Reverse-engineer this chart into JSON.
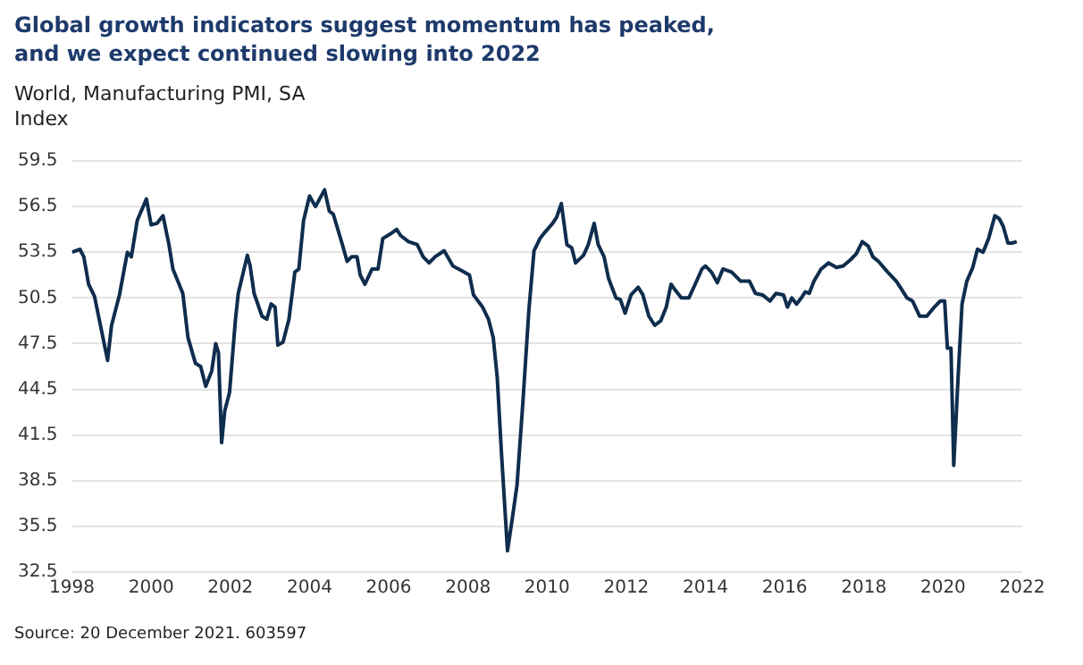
{
  "chart_data": {
    "type": "line",
    "title": "Global growth indicators suggest momentum has peaked, and we expect continued slowing into 2022",
    "subtitle": "World, Manufacturing PMI, SA",
    "ylabel": "Index",
    "annotations": [
      "Source: 20 December 2021. 603597"
    ],
    "xlim": [
      1998,
      2022
    ],
    "xticks": [
      1998,
      2000,
      2002,
      2004,
      2006,
      2008,
      2010,
      2012,
      2014,
      2016,
      2018,
      2020,
      2022
    ],
    "ylim": [
      32.5,
      59.5
    ],
    "yticks": [
      32.5,
      35.5,
      38.5,
      41.5,
      44.5,
      47.5,
      50.5,
      53.5,
      56.5,
      59.5
    ],
    "grid": "y",
    "legend": false,
    "series": [
      {
        "color": "#0f2d4d",
        "x": [
          1998.0,
          1998.2,
          1998.3,
          1998.42,
          1998.57,
          1998.9,
          1999.0,
          1999.2,
          1999.4,
          1999.5,
          1999.65,
          1999.88,
          2000.0,
          2000.15,
          2000.3,
          2000.45,
          2000.55,
          2000.8,
          2000.93,
          2001.12,
          2001.25,
          2001.38,
          2001.53,
          2001.63,
          2001.7,
          2001.78,
          2001.86,
          2001.98,
          2002.13,
          2002.2,
          2002.43,
          2002.5,
          2002.6,
          2002.8,
          2002.92,
          2003.03,
          2003.13,
          2003.2,
          2003.33,
          2003.48,
          2003.63,
          2003.73,
          2003.85,
          2004.0,
          2004.15,
          2004.38,
          2004.5,
          2004.6,
          2004.83,
          2004.95,
          2005.06,
          2005.2,
          2005.28,
          2005.4,
          2005.58,
          2005.73,
          2005.85,
          2006.04,
          2006.2,
          2006.3,
          2006.5,
          2006.72,
          2006.87,
          2007.02,
          2007.17,
          2007.4,
          2007.62,
          2007.84,
          2008.04,
          2008.14,
          2008.37,
          2008.52,
          2008.64,
          2008.74,
          2008.85,
          2009.0,
          2009.12,
          2009.24,
          2009.39,
          2009.54,
          2009.67,
          2009.82,
          2009.94,
          2010.14,
          2010.24,
          2010.36,
          2010.5,
          2010.62,
          2010.72,
          2010.92,
          2011.04,
          2011.19,
          2011.29,
          2011.44,
          2011.55,
          2011.74,
          2011.85,
          2011.97,
          2012.12,
          2012.3,
          2012.42,
          2012.57,
          2012.72,
          2012.87,
          2013.01,
          2013.13,
          2013.24,
          2013.39,
          2013.58,
          2013.74,
          2013.91,
          2014.0,
          2014.15,
          2014.3,
          2014.44,
          2014.66,
          2014.89,
          2015.11,
          2015.26,
          2015.44,
          2015.63,
          2015.78,
          2015.97,
          2016.07,
          2016.18,
          2016.3,
          2016.42,
          2016.52,
          2016.62,
          2016.74,
          2016.92,
          2017.11,
          2017.31,
          2017.48,
          2017.66,
          2017.81,
          2017.96,
          2018.11,
          2018.23,
          2018.37,
          2018.6,
          2018.82,
          2018.97,
          2019.09,
          2019.23,
          2019.41,
          2019.59,
          2019.78,
          2019.93,
          2020.04,
          2020.11,
          2020.2,
          2020.27,
          2020.38,
          2020.48,
          2020.6,
          2020.75,
          2020.87,
          2021.01,
          2021.15,
          2021.31,
          2021.42,
          2021.52,
          2021.64,
          2021.74,
          2021.86
        ],
        "values": [
          53.5,
          53.7,
          53.2,
          51.4,
          50.6,
          46.4,
          48.7,
          50.7,
          53.5,
          53.2,
          55.6,
          57.0,
          55.3,
          55.4,
          55.9,
          54.0,
          52.4,
          50.8,
          47.9,
          46.2,
          46.0,
          44.7,
          45.7,
          47.5,
          46.9,
          41.0,
          43.1,
          44.3,
          49.1,
          50.8,
          53.3,
          52.6,
          50.8,
          49.3,
          49.1,
          50.1,
          49.9,
          47.4,
          47.6,
          49.1,
          52.2,
          52.4,
          55.6,
          57.2,
          56.5,
          57.6,
          56.2,
          56.0,
          54.0,
          52.9,
          53.2,
          53.2,
          52.0,
          51.4,
          52.4,
          52.4,
          54.4,
          54.7,
          55.0,
          54.6,
          54.2,
          54.0,
          53.2,
          52.8,
          53.2,
          53.6,
          52.6,
          52.3,
          52.0,
          50.7,
          49.9,
          49.1,
          47.9,
          45.3,
          40.2,
          33.9,
          36.0,
          38.2,
          43.7,
          49.7,
          53.6,
          54.4,
          54.8,
          55.4,
          55.8,
          56.7,
          54.0,
          53.8,
          52.8,
          53.3,
          54.0,
          55.4,
          54.0,
          53.2,
          51.8,
          50.5,
          50.4,
          49.5,
          50.7,
          51.2,
          50.7,
          49.3,
          48.7,
          49.0,
          49.9,
          51.4,
          51.0,
          50.5,
          50.5,
          51.4,
          52.4,
          52.6,
          52.2,
          51.5,
          52.4,
          52.2,
          51.6,
          51.6,
          50.8,
          50.7,
          50.3,
          50.8,
          50.7,
          49.9,
          50.5,
          50.1,
          50.5,
          50.9,
          50.8,
          51.6,
          52.4,
          52.8,
          52.5,
          52.6,
          53.0,
          53.4,
          54.2,
          53.9,
          53.2,
          52.9,
          52.2,
          51.6,
          51.0,
          50.5,
          50.3,
          49.3,
          49.3,
          49.9,
          50.3,
          50.3,
          47.2,
          47.2,
          39.5,
          45.3,
          50.1,
          51.6,
          52.5,
          53.7,
          53.5,
          54.4,
          55.9,
          55.7,
          55.2,
          54.1,
          54.1,
          54.2
        ]
      }
    ]
  }
}
